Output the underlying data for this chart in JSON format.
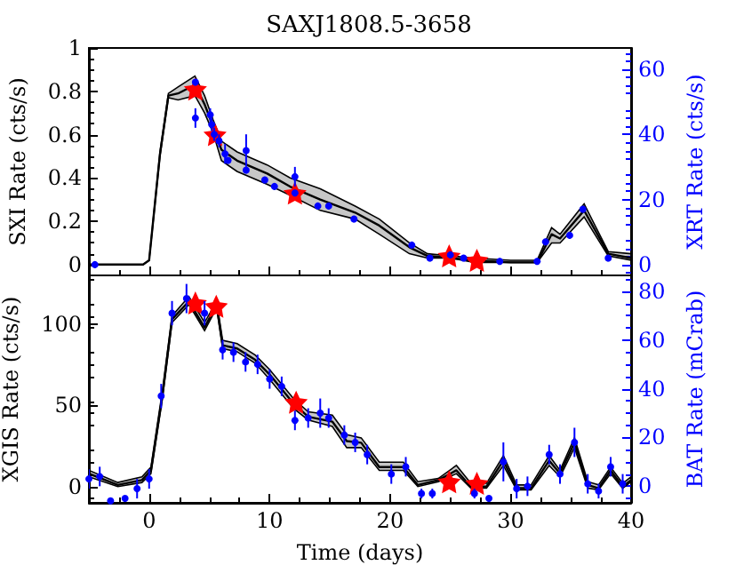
{
  "chart_data": [
    {
      "type": "line",
      "title": "SAXJ1808.5-3658",
      "ylabel": "SXI Rate (cts/s)",
      "y2label": "XRT Rate (cts/s)",
      "xlim": [
        -5,
        40
      ],
      "xticks": [
        0,
        10,
        20,
        30,
        40
      ],
      "ylim": [
        -0.05,
        1
      ],
      "yticks": [
        0,
        0.2,
        0.4,
        0.6,
        0.8,
        1
      ],
      "y2lim": [
        -3.3,
        66.5
      ],
      "y2ticks": [
        0,
        20,
        40,
        60
      ],
      "tick_labels": "y",
      "grid": false,
      "series": [
        {
          "color": "#000000",
          "marker": "none",
          "x": [
            -5,
            -0.5,
            0,
            0.9,
            1.6,
            2.4,
            3.8,
            4.6,
            5.3,
            6.0,
            7.3,
            9.8,
            11.7,
            14.2,
            17.1,
            19.1,
            21.6,
            23.1,
            25,
            27,
            30,
            32.2,
            33.4,
            34.1,
            36.1,
            38.1,
            40
          ],
          "values": [
            0,
            0,
            0.02,
            0.51,
            0.78,
            0.79,
            0.83,
            0.74,
            0.64,
            0.53,
            0.48,
            0.42,
            0.36,
            0.3,
            0.24,
            0.18,
            0.08,
            0.04,
            0.03,
            0.02,
            0.01,
            0.01,
            0.14,
            0.12,
            0.25,
            0.05,
            0.03
          ],
          "lower": [
            0,
            0,
            0.02,
            0.5,
            0.77,
            0.76,
            0.78,
            0.7,
            0.61,
            0.48,
            0.43,
            0.37,
            0.32,
            0.25,
            0.21,
            0.14,
            0.05,
            0.03,
            0.03,
            0.01,
            0.01,
            0.01,
            0.1,
            0.1,
            0.22,
            0.04,
            0.02
          ],
          "upper": [
            0,
            0,
            0.02,
            0.52,
            0.79,
            0.82,
            0.87,
            0.78,
            0.67,
            0.57,
            0.52,
            0.46,
            0.4,
            0.35,
            0.27,
            0.21,
            0.1,
            0.05,
            0.04,
            0.03,
            0.02,
            0.02,
            0.17,
            0.14,
            0.28,
            0.06,
            0.05
          ]
        },
        {
          "type": "scatter",
          "axis": "y2",
          "color": "#0000ff",
          "marker": "circle",
          "x": [
            -4.5,
            3.84,
            3.84,
            5.07,
            5.2,
            5.4,
            5.8,
            6.3,
            6.55,
            8.05,
            8.05,
            9.6,
            10.4,
            12.1,
            12.1,
            14,
            14.9,
            17,
            21.8,
            23.3,
            25,
            26.1,
            29.1,
            32.2,
            32.9,
            34.9,
            36,
            38.1
          ],
          "values": [
            0,
            56,
            45,
            46,
            43,
            40,
            38,
            34,
            32,
            35,
            29,
            26,
            24,
            27,
            22,
            18,
            18,
            14,
            6,
            2,
            3,
            2,
            1,
            1,
            7,
            9,
            17,
            2
          ],
          "errors": [
            1,
            1,
            3,
            2,
            2,
            2,
            2,
            3,
            1,
            5,
            1,
            1,
            1,
            3,
            1,
            1,
            1,
            1,
            1,
            1,
            1,
            1,
            1,
            1,
            1,
            1,
            1,
            1
          ]
        },
        {
          "type": "scatter",
          "color": "#ff0000",
          "marker": "star",
          "x": [
            3.84,
            5.47,
            12.1,
            24.9,
            27.2
          ],
          "values": [
            0.81,
            0.6,
            0.33,
            0.04,
            0.02
          ]
        }
      ]
    },
    {
      "type": "line",
      "xlabel": "Time (days)",
      "ylabel": "XGIS Rate (cts/s)",
      "y2label": "BAT Rate (mCrab)",
      "xlim": [
        -5,
        40
      ],
      "xticks": [
        0,
        10,
        20,
        30,
        40
      ],
      "ylim": [
        -10,
        130
      ],
      "yticks": [
        0,
        50,
        100
      ],
      "y2lim": [
        -6.8,
        86.5
      ],
      "y2ticks": [
        0,
        20,
        40,
        60,
        80
      ],
      "grid": false,
      "series": [
        {
          "color": "#000000",
          "marker": "none",
          "x": [
            -5,
            -2.6,
            -0.6,
            0.15,
            1.1,
            1.9,
            3.3,
            4.6,
            5.6,
            6.1,
            7.3,
            8.8,
            10,
            12,
            13.2,
            15.2,
            16.4,
            17.6,
            19.1,
            21.1,
            22.3,
            24,
            25.5,
            26.7,
            28,
            29.4,
            30.5,
            31.7,
            33.2,
            34.1,
            35.3,
            36.4,
            37.3,
            38.3,
            39.3,
            40
          ],
          "values": [
            8,
            1,
            4,
            10,
            56,
            103,
            114,
            98,
            112,
            87,
            85,
            78,
            69,
            51,
            43,
            40,
            28,
            27,
            12,
            12,
            1,
            4,
            10,
            0,
            0,
            16,
            -1,
            -1,
            16,
            8,
            27,
            1,
            -1,
            10,
            0,
            4
          ],
          "lower": [
            6,
            0,
            2.5,
            8,
            54,
            101,
            112,
            96,
            110,
            85,
            83,
            76,
            66,
            48,
            41,
            37,
            24,
            24,
            10,
            10,
            0,
            3,
            8,
            -1,
            -1,
            13,
            -2,
            -2,
            13,
            6,
            24,
            -1,
            -2,
            8,
            -1,
            3
          ],
          "upper": [
            10,
            2.5,
            6,
            12,
            59,
            105,
            117,
            101,
            114,
            90,
            88,
            81,
            72,
            54,
            46,
            44,
            32,
            30,
            15,
            15,
            3,
            5,
            13,
            2,
            2,
            19,
            1,
            1,
            19,
            10,
            30,
            3,
            1,
            12,
            2,
            6
          ]
        },
        {
          "type": "scatter",
          "axis": "y2",
          "color": "#0000ff",
          "marker": "circle",
          "x": [
            -5,
            -4.1,
            -3.2,
            -2,
            -1,
            0,
            1,
            1.9,
            3.1,
            4.6,
            6.1,
            7,
            8,
            9,
            10,
            11,
            12.1,
            13.2,
            14.2,
            14.9,
            16.2,
            17.1,
            18.1,
            20.1,
            21.3,
            22.6,
            23.5,
            27,
            28.2,
            29.4,
            30.5,
            31.4,
            33.2,
            34.1,
            35.3,
            36.4,
            37.3,
            38.3,
            39.3
          ],
          "values": [
            3,
            4,
            -6,
            -5,
            -1,
            3,
            37,
            71,
            77,
            71,
            56,
            55,
            51,
            50,
            44,
            41,
            27,
            28,
            30,
            28,
            21,
            18,
            13,
            5,
            8,
            -3,
            -3,
            -3,
            -5,
            10,
            -1,
            0,
            13,
            5,
            18,
            1,
            -2,
            8,
            1
          ],
          "errors": [
            4,
            4,
            0.5,
            1,
            4,
            4,
            5,
            5,
            6,
            5,
            4,
            4,
            4,
            4,
            4,
            4,
            4,
            4,
            6,
            4,
            4,
            4,
            4,
            4,
            4,
            2,
            2,
            2,
            1,
            8,
            4,
            4,
            4,
            4,
            6,
            4,
            3,
            4,
            4
          ]
        },
        {
          "type": "scatter",
          "color": "#ff0000",
          "marker": "star",
          "x": [
            3.84,
            5.57,
            12.2,
            24.9,
            27.2
          ],
          "values": [
            113,
            111,
            52,
            3,
            2
          ]
        }
      ]
    }
  ]
}
